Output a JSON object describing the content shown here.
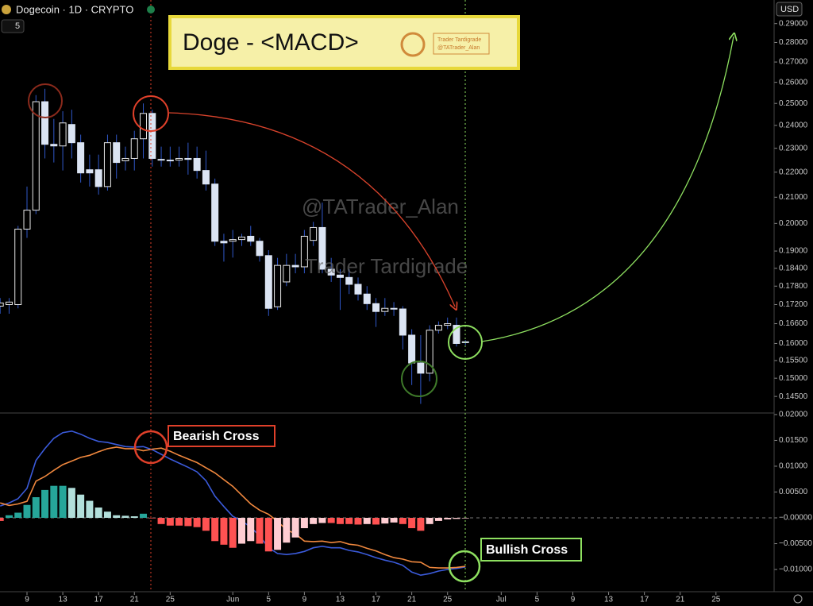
{
  "header": {
    "symbol": "Dogecoin · 1D · CRYPTO",
    "interval_count": "5",
    "currency": "USD"
  },
  "banner": {
    "title": "Doge - <MACD>",
    "logo_name": "Trader Tardigrade",
    "logo_handle": "@TATrader_Alan"
  },
  "watermark": {
    "handle": "@TATrader_Alan",
    "name": "Trader Tardigrade"
  },
  "chart_data": [
    {
      "type": "candlestick",
      "log_scale": true,
      "up_color": "#000000",
      "down_color": "#dbe4f3",
      "wick_color": "#2f57c8",
      "categories": [
        null,
        null,
        null,
        "9",
        null,
        null,
        null,
        "13",
        null,
        null,
        null,
        "17",
        null,
        null,
        null,
        "21",
        null,
        null,
        null,
        "25",
        null,
        null,
        null,
        null,
        null,
        null,
        "Jun",
        null,
        null,
        null,
        "5",
        null,
        null,
        null,
        "9",
        null,
        null,
        null,
        "13",
        null,
        null,
        null,
        "17",
        null,
        null,
        null,
        "21",
        null,
        null,
        null,
        "25",
        null,
        null,
        null,
        null,
        null,
        "Jul",
        null,
        null,
        null,
        "5",
        null,
        null,
        null,
        "9",
        null,
        null,
        null,
        "13",
        null,
        null,
        null,
        "17",
        null,
        null,
        null,
        "21",
        null,
        null,
        null,
        "25",
        null,
        null,
        null,
        null,
        null,
        null
      ],
      "open": [
        0.1715,
        0.172,
        0.172,
        0.1979,
        0.205,
        0.2508,
        0.2317,
        0.231,
        0.2404,
        0.2324,
        0.221,
        0.221,
        0.2142,
        0.2324,
        0.2247,
        0.2257,
        0.2341,
        0.2454,
        0.2253,
        0.225,
        0.225,
        0.2257,
        0.2257,
        0.2207,
        0.2152,
        0.1935,
        0.1935,
        0.1941,
        0.1953,
        0.1935,
        0.1884,
        0.1713,
        0.1794,
        0.185,
        0.1845,
        0.1938,
        0.1985,
        0.1837,
        0.1817,
        0.1809,
        0.1786,
        0.1754,
        0.1723,
        0.1698,
        0.1708,
        0.1706,
        0.1625,
        0.1543,
        0.1514,
        0.164,
        0.1655,
        0.1655,
        0.1605,
        null,
        null,
        null,
        null,
        null,
        null,
        null,
        null,
        null,
        null,
        null,
        null,
        null,
        null,
        null,
        null,
        null,
        null,
        null,
        null,
        null,
        null,
        null,
        null,
        null,
        null,
        null,
        null,
        null,
        null,
        null,
        null,
        null,
        null
      ],
      "high": [
        0.1741,
        0.1741,
        0.1991,
        0.2142,
        0.2539,
        0.2569,
        0.2429,
        0.2464,
        0.2471,
        0.2359,
        0.2273,
        0.2273,
        0.2359,
        0.2359,
        0.2307,
        0.2376,
        0.25,
        0.2471,
        0.2307,
        0.2307,
        0.2307,
        0.2324,
        0.2307,
        0.229,
        0.2174,
        0.1962,
        0.1976,
        0.1962,
        0.1991,
        0.1947,
        0.1903,
        0.1876,
        0.189,
        0.189,
        0.1976,
        0.2006,
        0.2079,
        0.1876,
        0.1837,
        0.1837,
        0.1809,
        0.178,
        0.1741,
        0.1741,
        0.1728,
        0.1715,
        0.1643,
        0.1625,
        0.1655,
        0.1667,
        0.1679,
        0.1679,
        0.161,
        null,
        null,
        null,
        null,
        null,
        null,
        null,
        null,
        null,
        null,
        null,
        null,
        null,
        null,
        null,
        null,
        null,
        null,
        null,
        null,
        null,
        null,
        null,
        null,
        null,
        null,
        null,
        null,
        null,
        null,
        null,
        null,
        null,
        null
      ],
      "low": [
        0.1691,
        0.1691,
        0.1708,
        0.1947,
        0.2035,
        0.2257,
        0.224,
        0.2207,
        0.2257,
        0.2158,
        0.2142,
        0.211,
        0.2126,
        0.2174,
        0.2207,
        0.2207,
        0.2257,
        0.2223,
        0.2223,
        0.2223,
        0.2223,
        0.219,
        0.2174,
        0.2126,
        0.1918,
        0.1863,
        0.1877,
        0.1918,
        0.1918,
        0.1863,
        0.1684,
        0.1703,
        0.178,
        0.1823,
        0.1823,
        0.1918,
        0.1823,
        0.1794,
        0.1703,
        0.1754,
        0.1733,
        0.1703,
        0.165,
        0.1684,
        0.1684,
        0.1582,
        0.1481,
        0.143,
        0.1491,
        0.163,
        0.1643,
        0.1591,
        0.1595,
        null,
        null,
        null,
        null,
        null,
        null,
        null,
        null,
        null,
        null,
        null,
        null,
        null,
        null,
        null,
        null,
        null,
        null,
        null,
        null,
        null,
        null,
        null,
        null,
        null,
        null,
        null,
        null,
        null,
        null,
        null,
        null,
        null,
        null
      ],
      "close": [
        0.1725,
        0.1728,
        0.1979,
        0.205,
        0.2508,
        0.2317,
        0.231,
        0.2411,
        0.2324,
        0.2197,
        0.2197,
        0.2142,
        0.2324,
        0.224,
        0.2257,
        0.2341,
        0.2454,
        0.2257,
        0.225,
        0.2247,
        0.2257,
        0.2253,
        0.2207,
        0.2152,
        0.1935,
        0.1929,
        0.1941,
        0.195,
        0.1935,
        0.1884,
        0.1708,
        0.185,
        0.185,
        0.1845,
        0.1953,
        0.1985,
        0.1837,
        0.1817,
        0.1809,
        0.1786,
        0.1754,
        0.1723,
        0.1698,
        0.1708,
        0.1706,
        0.1625,
        0.1543,
        0.1514,
        0.164,
        0.1655,
        0.166,
        0.16,
        0.1603,
        null,
        null,
        null,
        null,
        null,
        null,
        null,
        null,
        null,
        null,
        null,
        null,
        null,
        null,
        null,
        null,
        null,
        null,
        null,
        null,
        null,
        null,
        null,
        null,
        null,
        null,
        null,
        null,
        null,
        null,
        null,
        null,
        null,
        null
      ],
      "ylim": [
        0.1406,
        0.303
      ],
      "yticks": [
        {
          "value": 0.29,
          "label": "0.29000"
        },
        {
          "value": 0.28,
          "label": "0.28000"
        },
        {
          "value": 0.27,
          "label": "0.27000"
        },
        {
          "value": 0.26,
          "label": "0.26000"
        },
        {
          "value": 0.25,
          "label": "0.25000"
        },
        {
          "value": 0.24,
          "label": "0.24000"
        },
        {
          "value": 0.23,
          "label": "0.23000"
        },
        {
          "value": 0.22,
          "label": "0.22000"
        },
        {
          "value": 0.21,
          "label": "0.21000"
        },
        {
          "value": 0.2,
          "label": "0.20000"
        },
        {
          "value": 0.19,
          "label": "0.19000"
        },
        {
          "value": 0.184,
          "label": "0.18400"
        },
        {
          "value": 0.178,
          "label": "0.17800"
        },
        {
          "value": 0.172,
          "label": "0.17200"
        },
        {
          "value": 0.166,
          "label": "0.16600"
        },
        {
          "value": 0.16,
          "label": "0.16000"
        },
        {
          "value": 0.155,
          "label": "0.15500"
        },
        {
          "value": 0.15,
          "label": "0.15000"
        },
        {
          "value": 0.145,
          "label": "0.14500"
        }
      ]
    },
    {
      "type": "macd",
      "annotations": [
        "Bearish Cross",
        "Bullish Cross"
      ],
      "series": [
        {
          "kind": "line",
          "color": "#3b5bdb",
          "values": [
            0.0023,
            0.0029,
            0.0037,
            0.0057,
            0.0111,
            0.0134,
            0.0154,
            0.0165,
            0.0168,
            0.0162,
            0.0154,
            0.0148,
            0.0146,
            0.0142,
            0.0138,
            0.0137,
            0.0138,
            0.0132,
            0.0123,
            0.0114,
            0.0106,
            0.0098,
            0.0089,
            0.0072,
            0.0042,
            0.0022,
            0.0003,
            -0.0006,
            -0.0018,
            -0.0035,
            -0.0058,
            -0.0069,
            -0.0071,
            -0.0069,
            -0.0065,
            -0.0058,
            -0.0055,
            -0.0058,
            -0.0058,
            -0.0063,
            -0.0066,
            -0.0071,
            -0.0077,
            -0.0082,
            -0.0086,
            -0.0092,
            -0.0105,
            -0.0111,
            -0.0108,
            -0.0103,
            -0.01,
            -0.0098,
            -0.0095,
            null,
            null,
            null,
            null,
            null,
            null,
            null,
            null,
            null,
            null,
            null,
            null,
            null,
            null,
            null,
            null,
            null,
            null,
            null,
            null,
            null,
            null,
            null,
            null,
            null,
            null,
            null,
            null,
            null,
            null,
            null,
            null,
            null,
            null
          ]
        },
        {
          "kind": "line",
          "color": "#f0883e",
          "values": [
            0.0029,
            0.0024,
            0.0027,
            0.0032,
            0.0071,
            0.008,
            0.0092,
            0.0103,
            0.011,
            0.0117,
            0.0121,
            0.0128,
            0.0134,
            0.0137,
            0.0134,
            0.0134,
            0.013,
            0.0133,
            0.0135,
            0.0129,
            0.0121,
            0.0114,
            0.0107,
            0.0097,
            0.0087,
            0.0074,
            0.0061,
            0.0044,
            0.0027,
            0.0015,
            0.0007,
            -0.0007,
            -0.0023,
            -0.0031,
            -0.0045,
            -0.0046,
            -0.0045,
            -0.0048,
            -0.0046,
            -0.0051,
            -0.0053,
            -0.0059,
            -0.0064,
            -0.0071,
            -0.0077,
            -0.008,
            -0.0085,
            -0.0086,
            -0.0096,
            -0.0097,
            -0.0097,
            -0.0096,
            -0.0094,
            null,
            null,
            null,
            null,
            null,
            null,
            null,
            null,
            null,
            null,
            null,
            null,
            null,
            null,
            null,
            null,
            null,
            null,
            null,
            null,
            null,
            null,
            null,
            null,
            null,
            null,
            null,
            null,
            null,
            null,
            null,
            null,
            null,
            null
          ]
        },
        {
          "kind": "histogram",
          "colors": [
            "#26a69a",
            "#b2dfdb",
            "#ff5252",
            "#ffcdd2"
          ],
          "values": [
            -0.0006,
            0.0005,
            0.001,
            0.0025,
            0.004,
            0.0054,
            0.0062,
            0.0062,
            0.0058,
            0.0045,
            0.0033,
            0.002,
            0.0012,
            0.0005,
            0.0004,
            0.0003,
            0.0008,
            -0.0001,
            -0.0012,
            -0.0015,
            -0.0015,
            -0.0016,
            -0.0018,
            -0.0025,
            -0.0045,
            -0.0052,
            -0.0058,
            -0.005,
            -0.0045,
            -0.005,
            -0.0065,
            -0.0062,
            -0.0048,
            -0.0038,
            -0.002,
            -0.0012,
            -0.001,
            -0.001,
            -0.0012,
            -0.0012,
            -0.0013,
            -0.0012,
            -0.0013,
            -0.0011,
            -0.0009,
            -0.0012,
            -0.002,
            -0.0025,
            -0.0012,
            -0.0006,
            -0.0003,
            -0.0002,
            -0.0001,
            null,
            null,
            null,
            null,
            null,
            null,
            null,
            null,
            null,
            null,
            null,
            null,
            null,
            null,
            null,
            null,
            null,
            null,
            null,
            null,
            null,
            null,
            null,
            null,
            null,
            null,
            null,
            null,
            null,
            null,
            null,
            null,
            null,
            null
          ]
        }
      ],
      "ylim": [
        -0.0143,
        0.0203
      ],
      "yticks": [
        {
          "value": 0.02,
          "label": "0.02000"
        },
        {
          "value": 0.015,
          "label": "0.01500"
        },
        {
          "value": 0.01,
          "label": "0.01000"
        },
        {
          "value": 0.005,
          "label": "0.00500"
        },
        {
          "value": 0,
          "label": "−0.00000"
        },
        {
          "value": -0.005,
          "label": "−0.00500"
        },
        {
          "value": -0.01,
          "label": "−0.01000"
        }
      ]
    }
  ]
}
